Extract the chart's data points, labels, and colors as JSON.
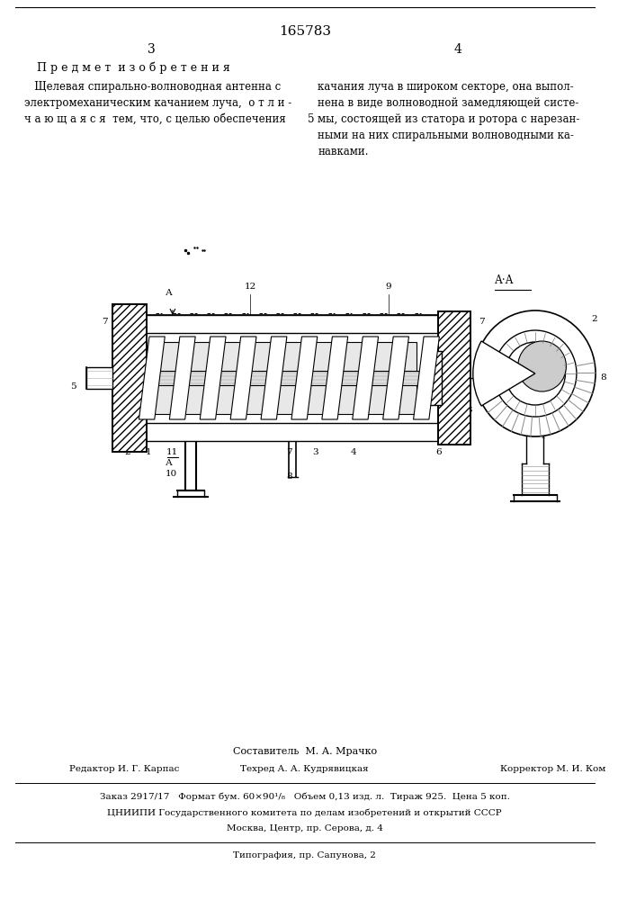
{
  "patent_number": "165783",
  "page_left": "3",
  "page_right": "4",
  "section_title": "П р е д м е т  и з о б р е т е н и я",
  "text_left_1": "   Щелевая спирально-волноводная антенна с",
  "text_left_2": "электромеханическим качанием луча,  о т л и -",
  "text_left_3": "ч а ю щ а я с я  тем, что, с целью обеспечения",
  "line_number": "5",
  "text_right_1": "качания луча в широком секторе, она выпол-",
  "text_right_2": "нена в виде волноводной замедляющей систе-",
  "text_right_3": "мы, состоящей из статора и ротора с нарезан-",
  "text_right_4": "ными на них спиральными волноводными ка-",
  "text_right_5": "навками.",
  "composit_line": "Составитель  М. А. Мрачко",
  "editor_label": "Редактор И. Г. Карпас",
  "techred_label": "Техред А. А. Кудрявицкая",
  "corrector_label": "Корректор М. И. Ком",
  "order_line": "Заказ 2917/17   Формат бум. 60×90¹/₈   Объем 0,13 изд. л.  Тираж 925.  Цена 5 коп.",
  "org_line": "ЦНИИПИ Государственного комитета по делам изобретений и открытий СССР",
  "address_line": "Москва, Центр, пр. Серова, д. 4",
  "typography_line": "Типография, пр. Сапунова, 2",
  "bg_color": "#ffffff",
  "text_color": "#000000",
  "figsize": [
    7.07,
    10.0
  ],
  "dpi": 100
}
